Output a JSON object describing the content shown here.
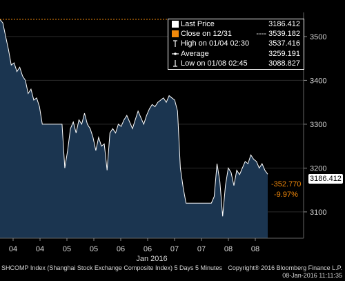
{
  "chart_data": {
    "type": "area",
    "title": "",
    "xlabel": "Jan 2016",
    "ylabel": "",
    "ylim": [
      3040,
      3555
    ],
    "y_ticks": [
      3100,
      3200,
      3300,
      3400,
      3500
    ],
    "x_tick_labels": [
      "04",
      "04",
      "05",
      "05",
      "06",
      "06",
      "07",
      "07",
      "08",
      "08"
    ],
    "series": [
      {
        "values": [
          3539,
          3531,
          3500,
          3470,
          3435,
          3440,
          3420,
          3430,
          3410,
          3400,
          3370,
          3380,
          3355,
          3360,
          3340,
          3300,
          3300,
          3300,
          3300,
          3300,
          3300,
          3300,
          3300,
          3200,
          3240,
          3290,
          3305,
          3280,
          3310,
          3300,
          3325,
          3300,
          3290,
          3270,
          3240,
          3270,
          3250,
          3255,
          3195,
          3280,
          3290,
          3280,
          3300,
          3295,
          3310,
          3320,
          3305,
          3290,
          3310,
          3330,
          3315,
          3300,
          3320,
          3335,
          3345,
          3340,
          3350,
          3355,
          3360,
          3350,
          3365,
          3360,
          3355,
          3330,
          3200,
          3155,
          3120,
          3120,
          3120,
          3120,
          3120,
          3120,
          3120,
          3120,
          3120,
          3120,
          3135,
          3210,
          3170,
          3090,
          3160,
          3200,
          3190,
          3160,
          3195,
          3185,
          3200,
          3215,
          3210,
          3230,
          3220,
          3215,
          3200,
          3210,
          3195,
          3186
        ]
      }
    ],
    "legend": {
      "position": "top-right",
      "items": [
        {
          "label": "Last Price",
          "value": "3186.412",
          "icon": "square-white"
        },
        {
          "label": "Close on 12/31",
          "value": "---- 3539.182",
          "icon": "square-orange"
        },
        {
          "label": "High on 01/04 02:30",
          "value": "3537.416",
          "icon": "high-marker"
        },
        {
          "label": "Average",
          "value": "3259.191",
          "icon": "average-marker"
        },
        {
          "label": "Low on 01/08 02:45",
          "value": "3088.827",
          "icon": "low-marker"
        }
      ]
    },
    "last_price_tag": "3186.412",
    "change_value": "-352.770",
    "change_pct": "-9.97%",
    "close_reference": 3539.182,
    "colors": {
      "fill": "#1b3550",
      "line": "#ffffff",
      "reference": "#f0880a",
      "tag": "#ffffff"
    }
  },
  "footer": {
    "left": "SHCOMP Index (Shanghai Stock Exchange Composite Index) 5 Days 5 Minutes",
    "right_top": "Copyright® 2016 Bloomberg Finance L.P.",
    "right_bottom": "08-Jan-2016 11:11:35"
  }
}
